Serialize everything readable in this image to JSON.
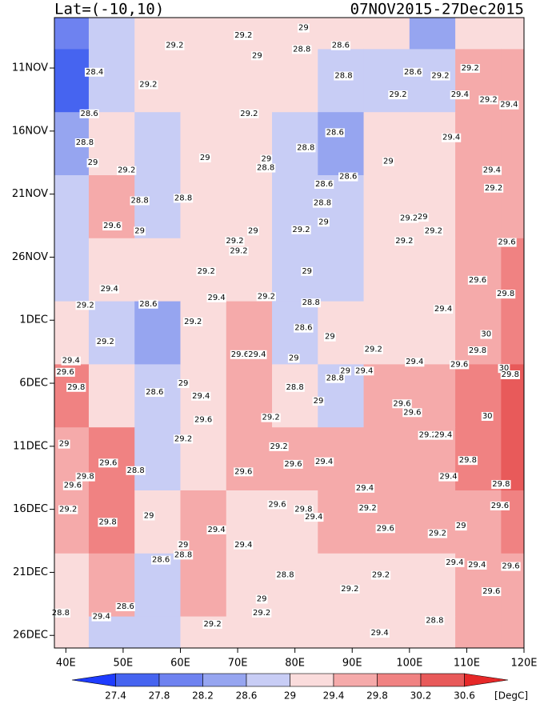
{
  "chart_data": {
    "type": "contour",
    "title_left": "Lat=(-10,10)",
    "title_right": "07NOV2015-27Dec2015",
    "colorbar_unit": "[DegC]",
    "xlim": [
      38,
      120
    ],
    "xticks": [
      {
        "value": 40,
        "label": "40E"
      },
      {
        "value": 50,
        "label": "50E"
      },
      {
        "value": 60,
        "label": "60E"
      },
      {
        "value": 70,
        "label": "70E"
      },
      {
        "value": 80,
        "label": "80E"
      },
      {
        "value": 90,
        "label": "90E"
      },
      {
        "value": 100,
        "label": "100E"
      },
      {
        "value": 110,
        "label": "110E"
      },
      {
        "value": 120,
        "label": "120E"
      }
    ],
    "ylim": [
      0,
      50
    ],
    "yticks": [
      {
        "value": 4,
        "label": "11NOV"
      },
      {
        "value": 9,
        "label": "16NOV"
      },
      {
        "value": 14,
        "label": "21NOV"
      },
      {
        "value": 19,
        "label": "26NOV"
      },
      {
        "value": 24,
        "label": "1DEC"
      },
      {
        "value": 29,
        "label": "6DEC"
      },
      {
        "value": 34,
        "label": "11DEC"
      },
      {
        "value": 39,
        "label": "16DEC"
      },
      {
        "value": 44,
        "label": "21DEC"
      },
      {
        "value": 49,
        "label": "26DEC"
      }
    ],
    "levels": [
      27.4,
      27.8,
      28.2,
      28.6,
      29,
      29.4,
      29.8,
      30.2,
      30.6
    ],
    "colors": [
      "#1e3cff",
      "#4664f0",
      "#6e82f0",
      "#96a5f0",
      "#c8cdf5",
      "#fadcdc",
      "#f5aaaa",
      "#f08282",
      "#e85a5a",
      "#e62828"
    ],
    "x": [
      40,
      48,
      56,
      64,
      72,
      80,
      88,
      96,
      104,
      112,
      120
    ],
    "y": [
      0,
      5,
      10,
      15,
      20,
      25,
      30,
      35,
      40,
      45,
      50
    ],
    "z": [
      [
        28.0,
        28.9,
        29.2,
        29.2,
        29.2,
        29.0,
        29.0,
        29.0,
        28.4,
        29.2,
        29.3
      ],
      [
        27.6,
        28.8,
        29.1,
        29.1,
        29.2,
        29.0,
        28.7,
        28.9,
        28.8,
        29.4,
        29.5
      ],
      [
        28.4,
        29.0,
        28.8,
        29.0,
        29.3,
        28.8,
        28.5,
        29.1,
        29.2,
        29.5,
        29.6
      ],
      [
        28.7,
        29.5,
        28.9,
        29.2,
        29.2,
        28.8,
        28.9,
        29.0,
        29.2,
        29.4,
        29.7
      ],
      [
        28.8,
        29.3,
        29.2,
        29.2,
        29.2,
        28.9,
        28.8,
        29.0,
        29.2,
        29.6,
        29.9
      ],
      [
        29.2,
        28.7,
        28.5,
        29.2,
        29.5,
        28.9,
        29.0,
        29.2,
        29.3,
        29.7,
        30.0
      ],
      [
        29.8,
        29.1,
        28.8,
        29.3,
        29.6,
        29.1,
        28.8,
        29.4,
        29.5,
        29.8,
        30.3
      ],
      [
        29.7,
        29.9,
        28.9,
        29.3,
        29.5,
        29.7,
        29.5,
        29.4,
        29.4,
        29.8,
        30.2
      ],
      [
        29.4,
        29.9,
        29.0,
        29.4,
        29.3,
        29.3,
        29.5,
        29.4,
        29.7,
        29.5,
        29.8
      ],
      [
        29.3,
        29.6,
        28.6,
        29.4,
        29.0,
        29.0,
        29.3,
        29.1,
        29.2,
        29.5,
        29.7
      ],
      [
        29.2,
        28.7,
        28.9,
        29.3,
        29.2,
        29.2,
        29.2,
        29.2,
        29.0,
        29.4,
        29.6
      ]
    ],
    "contour_labels": [
      {
        "x": 71,
        "y": 1.4,
        "value": 29.2
      },
      {
        "x": 81.5,
        "y": 0.8,
        "value": 29
      },
      {
        "x": 88,
        "y": 2.2,
        "value": 28.6
      },
      {
        "x": 81.2,
        "y": 2.5,
        "value": 28.8
      },
      {
        "x": 73.4,
        "y": 3,
        "value": 29
      },
      {
        "x": 59,
        "y": 2.2,
        "value": 29.2
      },
      {
        "x": 45,
        "y": 4.3,
        "value": 28.4
      },
      {
        "x": 54.4,
        "y": 5.3,
        "value": 29.2
      },
      {
        "x": 88.5,
        "y": 4.6,
        "value": 28.8
      },
      {
        "x": 100.6,
        "y": 4.3,
        "value": 28.6
      },
      {
        "x": 105.4,
        "y": 4.6,
        "value": 29.2
      },
      {
        "x": 110.6,
        "y": 4,
        "value": 29.2
      },
      {
        "x": 98,
        "y": 6.1,
        "value": 29.2
      },
      {
        "x": 108.8,
        "y": 6.1,
        "value": 29.4
      },
      {
        "x": 113.8,
        "y": 6.5,
        "value": 29.2
      },
      {
        "x": 117.4,
        "y": 6.9,
        "value": 29.4
      },
      {
        "x": 72,
        "y": 7.6,
        "value": 29.2
      },
      {
        "x": 44.1,
        "y": 7.6,
        "value": 28.6
      },
      {
        "x": 87,
        "y": 9.1,
        "value": 28.6
      },
      {
        "x": 107.3,
        "y": 9.5,
        "value": 29.4
      },
      {
        "x": 43.3,
        "y": 9.9,
        "value": 28.8
      },
      {
        "x": 81.9,
        "y": 10.3,
        "value": 28.8
      },
      {
        "x": 75,
        "y": 11.2,
        "value": 29
      },
      {
        "x": 74.9,
        "y": 11.9,
        "value": 28.8
      },
      {
        "x": 50.6,
        "y": 12.1,
        "value": 29.2
      },
      {
        "x": 64.3,
        "y": 11.1,
        "value": 29
      },
      {
        "x": 96.3,
        "y": 11.4,
        "value": 29
      },
      {
        "x": 44.7,
        "y": 11.5,
        "value": 29
      },
      {
        "x": 114.4,
        "y": 12.1,
        "value": 29.4
      },
      {
        "x": 85.1,
        "y": 13.2,
        "value": 28.6
      },
      {
        "x": 89.3,
        "y": 12.6,
        "value": 28.6
      },
      {
        "x": 52.9,
        "y": 14.5,
        "value": 28.8
      },
      {
        "x": 60.5,
        "y": 14.3,
        "value": 28.8
      },
      {
        "x": 84.8,
        "y": 14.7,
        "value": 28.8
      },
      {
        "x": 114.7,
        "y": 13.5,
        "value": 29.2
      },
      {
        "x": 99.9,
        "y": 15.9,
        "value": 29.2
      },
      {
        "x": 102.3,
        "y": 15.8,
        "value": 29
      },
      {
        "x": 48.1,
        "y": 16.5,
        "value": 29.6
      },
      {
        "x": 52.9,
        "y": 16.9,
        "value": 29
      },
      {
        "x": 69.5,
        "y": 17.7,
        "value": 29.2
      },
      {
        "x": 70.2,
        "y": 18.5,
        "value": 29.2
      },
      {
        "x": 72.7,
        "y": 16.9,
        "value": 29
      },
      {
        "x": 81.1,
        "y": 16.8,
        "value": 29.2
      },
      {
        "x": 85,
        "y": 16.2,
        "value": 29
      },
      {
        "x": 99.1,
        "y": 17.7,
        "value": 29.2
      },
      {
        "x": 104.2,
        "y": 16.9,
        "value": 29.2
      },
      {
        "x": 117,
        "y": 17.8,
        "value": 29.6
      },
      {
        "x": 64.5,
        "y": 20.1,
        "value": 29.2
      },
      {
        "x": 82.1,
        "y": 20.1,
        "value": 29
      },
      {
        "x": 111.9,
        "y": 20.8,
        "value": 29.6
      },
      {
        "x": 47.6,
        "y": 21.5,
        "value": 29.4
      },
      {
        "x": 54.4,
        "y": 22.7,
        "value": 28.6
      },
      {
        "x": 43.4,
        "y": 22.8,
        "value": 29.2
      },
      {
        "x": 66.3,
        "y": 22.2,
        "value": 29.4
      },
      {
        "x": 75,
        "y": 22.1,
        "value": 29.2
      },
      {
        "x": 82.8,
        "y": 22.6,
        "value": 28.8
      },
      {
        "x": 116.8,
        "y": 21.9,
        "value": 29.8
      },
      {
        "x": 105.9,
        "y": 23.1,
        "value": 29.4
      },
      {
        "x": 62.2,
        "y": 24.1,
        "value": 29.2
      },
      {
        "x": 46.9,
        "y": 25.7,
        "value": 29.2
      },
      {
        "x": 81.5,
        "y": 24.6,
        "value": 28.6
      },
      {
        "x": 86.1,
        "y": 25.3,
        "value": 29
      },
      {
        "x": 113.4,
        "y": 25.1,
        "value": 30
      },
      {
        "x": 40.9,
        "y": 27.2,
        "value": 29.4
      },
      {
        "x": 93.7,
        "y": 26.3,
        "value": 29.2
      },
      {
        "x": 70.4,
        "y": 26.7,
        "value": 29.6
      },
      {
        "x": 73.4,
        "y": 26.7,
        "value": 29.4
      },
      {
        "x": 79.8,
        "y": 27,
        "value": 29
      },
      {
        "x": 111.9,
        "y": 26.4,
        "value": 29.8
      },
      {
        "x": 39.9,
        "y": 28.1,
        "value": 29.6
      },
      {
        "x": 100.9,
        "y": 27.3,
        "value": 29.4
      },
      {
        "x": 108.7,
        "y": 27.5,
        "value": 29.6
      },
      {
        "x": 116.5,
        "y": 27.8,
        "value": 30
      },
      {
        "x": 117.6,
        "y": 28.3,
        "value": 29.8
      },
      {
        "x": 88.8,
        "y": 28,
        "value": 29
      },
      {
        "x": 92.1,
        "y": 28,
        "value": 29.4
      },
      {
        "x": 87,
        "y": 28.6,
        "value": 28.8
      },
      {
        "x": 41.8,
        "y": 29.3,
        "value": 29.8
      },
      {
        "x": 55.5,
        "y": 29.7,
        "value": 28.6
      },
      {
        "x": 60.5,
        "y": 29,
        "value": 29
      },
      {
        "x": 63.6,
        "y": 30,
        "value": 29.4
      },
      {
        "x": 80,
        "y": 29.3,
        "value": 28.8
      },
      {
        "x": 84.1,
        "y": 30.4,
        "value": 29
      },
      {
        "x": 98.7,
        "y": 30.6,
        "value": 29.6
      },
      {
        "x": 100.5,
        "y": 31.3,
        "value": 29.6
      },
      {
        "x": 113.6,
        "y": 31.6,
        "value": 30
      },
      {
        "x": 64,
        "y": 31.9,
        "value": 29.6
      },
      {
        "x": 75.8,
        "y": 31.7,
        "value": 29.2
      },
      {
        "x": 103.2,
        "y": 33.1,
        "value": 29.2
      },
      {
        "x": 105.9,
        "y": 33.1,
        "value": 29.4
      },
      {
        "x": 60.5,
        "y": 33.4,
        "value": 29.2
      },
      {
        "x": 39.7,
        "y": 33.8,
        "value": 29
      },
      {
        "x": 77.2,
        "y": 34,
        "value": 29.2
      },
      {
        "x": 47.4,
        "y": 35.3,
        "value": 29.6
      },
      {
        "x": 52.2,
        "y": 35.9,
        "value": 28.8
      },
      {
        "x": 85.1,
        "y": 35.2,
        "value": 29.4
      },
      {
        "x": 110.2,
        "y": 35.1,
        "value": 29.8
      },
      {
        "x": 71,
        "y": 36,
        "value": 29.6
      },
      {
        "x": 79.7,
        "y": 35.4,
        "value": 29.6
      },
      {
        "x": 43.4,
        "y": 36.4,
        "value": 29.8
      },
      {
        "x": 106.8,
        "y": 36.4,
        "value": 29.4
      },
      {
        "x": 41.2,
        "y": 37.1,
        "value": 29.6
      },
      {
        "x": 92.2,
        "y": 37.3,
        "value": 29.4
      },
      {
        "x": 116,
        "y": 37,
        "value": 29.8
      },
      {
        "x": 76.9,
        "y": 38.6,
        "value": 29.6
      },
      {
        "x": 81.5,
        "y": 39,
        "value": 29.8
      },
      {
        "x": 83.3,
        "y": 39.6,
        "value": 29.4
      },
      {
        "x": 40.4,
        "y": 39,
        "value": 29.2
      },
      {
        "x": 92.7,
        "y": 38.9,
        "value": 29.2
      },
      {
        "x": 115.8,
        "y": 38.7,
        "value": 29.6
      },
      {
        "x": 47.3,
        "y": 40,
        "value": 29.8
      },
      {
        "x": 54.5,
        "y": 39.5,
        "value": 29
      },
      {
        "x": 95.8,
        "y": 40.5,
        "value": 29.6
      },
      {
        "x": 109,
        "y": 40.3,
        "value": 29
      },
      {
        "x": 104.9,
        "y": 40.9,
        "value": 29.2
      },
      {
        "x": 66.3,
        "y": 40.6,
        "value": 29.4
      },
      {
        "x": 60.5,
        "y": 41.8,
        "value": 29
      },
      {
        "x": 71,
        "y": 41.8,
        "value": 29.4
      },
      {
        "x": 60.5,
        "y": 42.6,
        "value": 28.8
      },
      {
        "x": 56.6,
        "y": 43,
        "value": 28.6
      },
      {
        "x": 107.9,
        "y": 43.2,
        "value": 29.4
      },
      {
        "x": 111.8,
        "y": 43.4,
        "value": 29.4
      },
      {
        "x": 117.7,
        "y": 43.5,
        "value": 29.6
      },
      {
        "x": 78.3,
        "y": 44.2,
        "value": 28.8
      },
      {
        "x": 95,
        "y": 44.2,
        "value": 29.2
      },
      {
        "x": 89.6,
        "y": 45.3,
        "value": 29.2
      },
      {
        "x": 114.3,
        "y": 45.5,
        "value": 29.6
      },
      {
        "x": 74.2,
        "y": 46.1,
        "value": 29
      },
      {
        "x": 74.2,
        "y": 47.2,
        "value": 29.2
      },
      {
        "x": 50.4,
        "y": 46.7,
        "value": 28.6
      },
      {
        "x": 46.2,
        "y": 47.5,
        "value": 29.4
      },
      {
        "x": 39.1,
        "y": 47.2,
        "value": 28.8
      },
      {
        "x": 65.6,
        "y": 48.1,
        "value": 29.2
      },
      {
        "x": 104.4,
        "y": 47.8,
        "value": 28.8
      },
      {
        "x": 94.8,
        "y": 48.8,
        "value": 29.4
      }
    ]
  }
}
